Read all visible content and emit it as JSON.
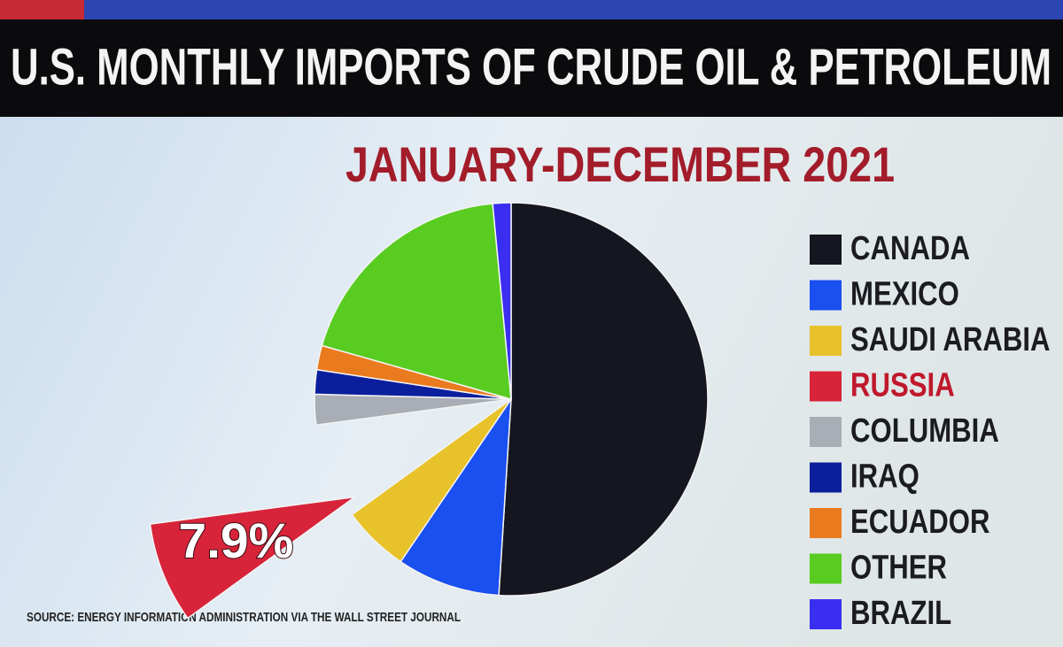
{
  "chart_data": {
    "type": "pie",
    "title": "U.S. MONTHLY IMPORTS OF CRUDE OIL & PETROLEUM",
    "subtitle": "JANUARY-DECEMBER 2021",
    "source": "SOURCE: ENERGY INFORMATION ADMINISTRATION VIA THE WALL STREET JOURNAL",
    "categories": [
      "CANADA",
      "MEXICO",
      "SAUDI ARABIA",
      "RUSSIA",
      "COLUMBIA",
      "IRAQ",
      "ECUADOR",
      "OTHER",
      "BRAZIL"
    ],
    "values": [
      51,
      8.5,
      5.5,
      7.9,
      2.5,
      2,
      2,
      19.1,
      1.5
    ],
    "value_labels": [
      null,
      null,
      null,
      "7.9%",
      null,
      null,
      null,
      null,
      null
    ],
    "colors": [
      "#15161f",
      "#1a4ff0",
      "#e8c22a",
      "#d7243a",
      "#a9adb5",
      "#0b1f9c",
      "#ea7a1e",
      "#58cc20",
      "#3a2ff0"
    ],
    "exploded": 3,
    "highlight_color": "#c0182c",
    "legend": "right"
  }
}
